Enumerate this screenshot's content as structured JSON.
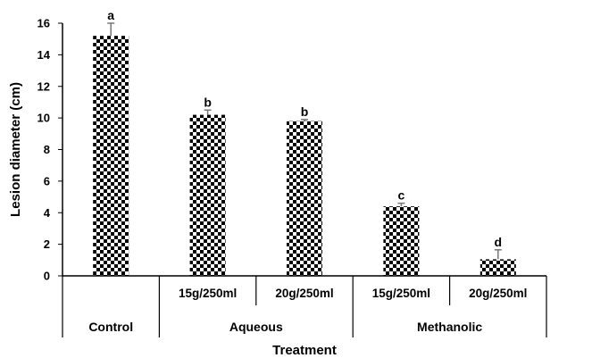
{
  "chart_data": {
    "type": "bar",
    "title": "",
    "xlabel": "Treatment",
    "ylabel": "Lesion diameter (cm)",
    "ylim": [
      0,
      16
    ],
    "yticks": [
      0,
      2,
      4,
      6,
      8,
      10,
      12,
      14,
      16
    ],
    "grid": false,
    "bar_fill": "checkerboard black/white",
    "categories": [
      {
        "group": "Control",
        "label": "",
        "value": 15.2,
        "error": 0.8,
        "significance": "a"
      },
      {
        "group": "Aqueous",
        "label": "15g/250ml",
        "value": 10.2,
        "error": 0.3,
        "significance": "b"
      },
      {
        "group": "Aqueous",
        "label": "20g/250ml",
        "value": 9.8,
        "error": 0.1,
        "significance": "b"
      },
      {
        "group": "Methanolic",
        "label": "15g/250ml",
        "value": 4.4,
        "error": 0.2,
        "significance": "c"
      },
      {
        "group": "Methanolic",
        "label": "20g/250ml",
        "value": 1.05,
        "error": 0.6,
        "significance": "d"
      }
    ],
    "groups": [
      "Control",
      "Aqueous",
      "Methanolic"
    ]
  }
}
